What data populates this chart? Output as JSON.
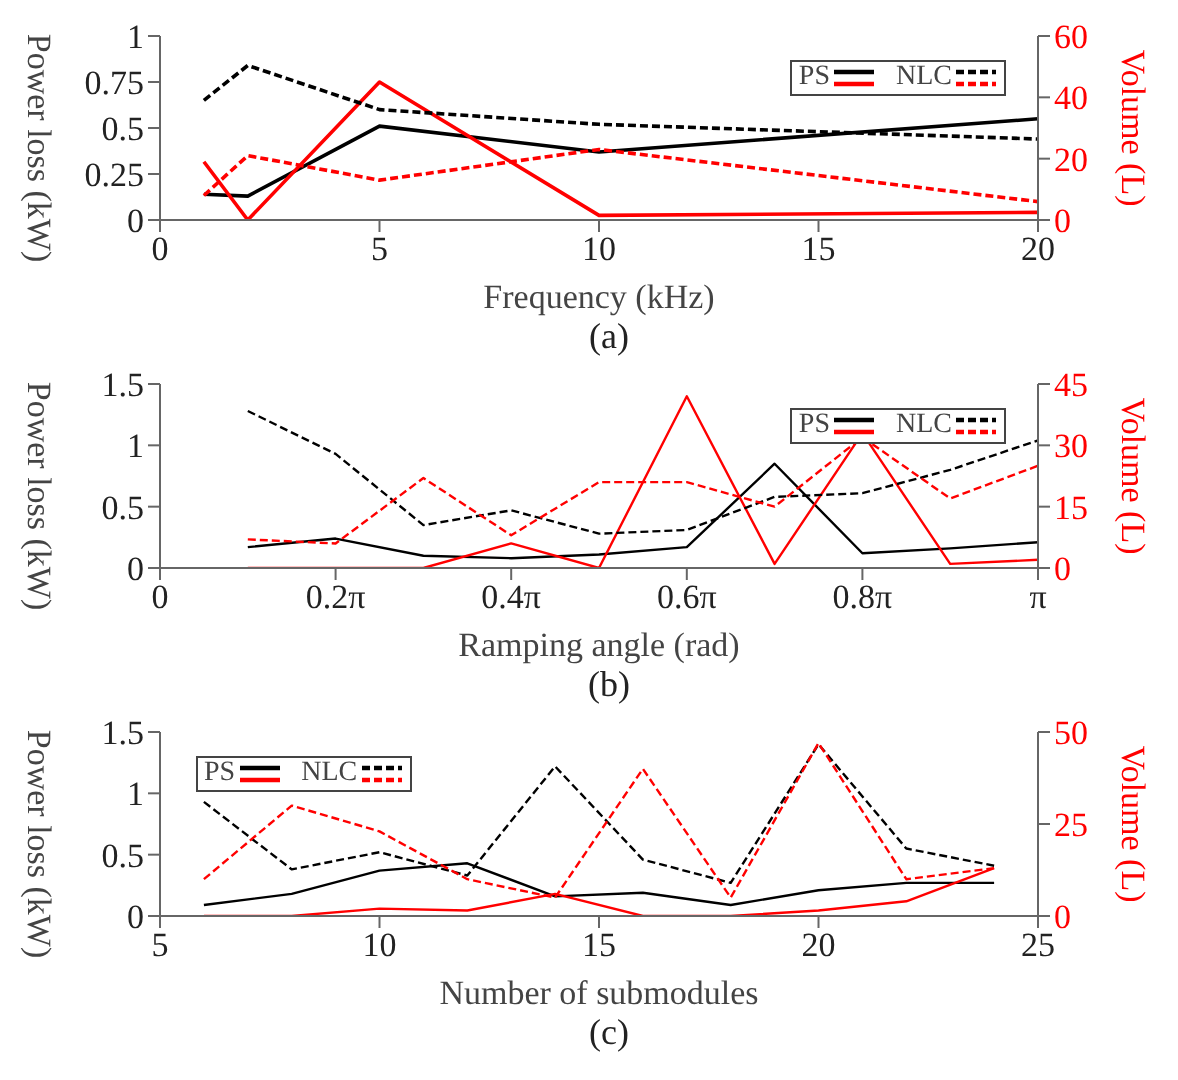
{
  "chart_data": [
    {
      "type": "line",
      "xlabel": "Frequency (kHz)",
      "ylabel": "Power loss (kW)",
      "y2label": "Volume (L)",
      "annotations": [
        "(a)"
      ],
      "legend": "top right",
      "x": [
        1,
        2,
        5,
        10,
        20
      ],
      "xlim": [
        0,
        20
      ],
      "xticks": [
        0,
        5,
        10,
        15,
        20
      ],
      "ylim": [
        0,
        1
      ],
      "yticks": [
        0,
        0.25,
        0.5,
        0.75,
        1
      ],
      "y2lim": [
        0,
        60
      ],
      "y2ticks": [
        0,
        20,
        40,
        60
      ],
      "grid": false,
      "series": [
        {
          "name": "PS",
          "color": "#000000",
          "line_style": "solid",
          "values": [
            0.14,
            0.13,
            0.51,
            0.37,
            0.55
          ]
        },
        {
          "color": "#ff0000",
          "line_style": "solid",
          "axis": "y2",
          "values": [
            19,
            0,
            45,
            1.5,
            2.5
          ]
        },
        {
          "name": "NLC",
          "color": "#000000",
          "line_style": "dashed",
          "values": [
            0.65,
            0.84,
            0.6,
            0.52,
            0.44
          ]
        },
        {
          "color": "#ff0000",
          "line_style": "dashed",
          "axis": "y2",
          "values": [
            8,
            21,
            13,
            23,
            6
          ]
        }
      ]
    },
    {
      "type": "line",
      "xlabel": "Ramping angle (rad)",
      "ylabel": "Power loss (kW)",
      "y2label": "Volume (L)",
      "annotations": [
        "(b)"
      ],
      "legend": "top right",
      "x": [
        0.3142,
        0.6283,
        0.9425,
        1.2566,
        1.5708,
        1.885,
        2.1991,
        2.5133,
        2.8274,
        3.1416
      ],
      "xlim": [
        0,
        3.1416
      ],
      "xticks": [
        0,
        {
          "value": 0.6283,
          "label": "0.2π"
        },
        {
          "value": 1.2566,
          "label": "0.4π"
        },
        {
          "value": 1.885,
          "label": "0.6π"
        },
        {
          "value": 2.5133,
          "label": "0.8π"
        },
        {
          "value": 3.1416,
          "label": "π"
        }
      ],
      "ylim": [
        0,
        1.5
      ],
      "yticks": [
        0,
        0.5,
        1,
        1.5
      ],
      "y2lim": [
        0,
        45
      ],
      "y2ticks": [
        0,
        15,
        30,
        45
      ],
      "grid": false,
      "series": [
        {
          "name": "PS",
          "color": "#000000",
          "line_style": "solid",
          "values": [
            0.17,
            0.24,
            0.1,
            0.08,
            0.11,
            0.17,
            0.85,
            0.12,
            0.16,
            0.21
          ]
        },
        {
          "color": "#ff0000",
          "line_style": "solid",
          "axis": "y2",
          "values": [
            0,
            0,
            0,
            6,
            0,
            42,
            1,
            33,
            1,
            2
          ]
        },
        {
          "name": "NLC",
          "color": "#000000",
          "line_style": "dashed",
          "values": [
            1.28,
            0.93,
            0.35,
            0.47,
            0.28,
            0.31,
            0.58,
            0.61,
            0.8,
            1.04
          ]
        },
        {
          "color": "#ff0000",
          "line_style": "dashed",
          "axis": "y2",
          "values": [
            7,
            6,
            22,
            8,
            21,
            21,
            15,
            32,
            17,
            25
          ]
        }
      ]
    },
    {
      "type": "line",
      "xlabel": "Number of submodules",
      "ylabel": "Power loss (kW)",
      "y2label": "Volume (L)",
      "annotations": [
        "(c)"
      ],
      "legend": "top left",
      "x": [
        6,
        8,
        10,
        12,
        14,
        16,
        18,
        20,
        22,
        24
      ],
      "xlim": [
        5,
        25
      ],
      "xticks": [
        5,
        10,
        15,
        20,
        25
      ],
      "ylim": [
        0,
        1.5
      ],
      "yticks": [
        0,
        0.5,
        1,
        1.5
      ],
      "y2lim": [
        0,
        50
      ],
      "y2ticks": [
        0,
        25,
        50
      ],
      "grid": false,
      "series": [
        {
          "name": "PS",
          "color": "#000000",
          "line_style": "solid",
          "values": [
            0.09,
            0.18,
            0.37,
            0.43,
            0.16,
            0.19,
            0.09,
            0.21,
            0.27,
            0.27
          ]
        },
        {
          "color": "#ff0000",
          "line_style": "solid",
          "axis": "y2",
          "values": [
            0,
            0,
            2,
            1.5,
            6,
            0,
            0,
            1.5,
            4,
            13
          ]
        },
        {
          "name": "NLC",
          "color": "#000000",
          "line_style": "dashed",
          "values": [
            0.93,
            0.38,
            0.52,
            0.33,
            1.22,
            0.46,
            0.27,
            1.4,
            0.55,
            0.41
          ]
        },
        {
          "color": "#ff0000",
          "line_style": "dashed",
          "axis": "y2",
          "values": [
            10,
            30,
            23,
            10,
            5,
            40,
            5,
            47,
            10,
            13
          ]
        }
      ]
    }
  ]
}
